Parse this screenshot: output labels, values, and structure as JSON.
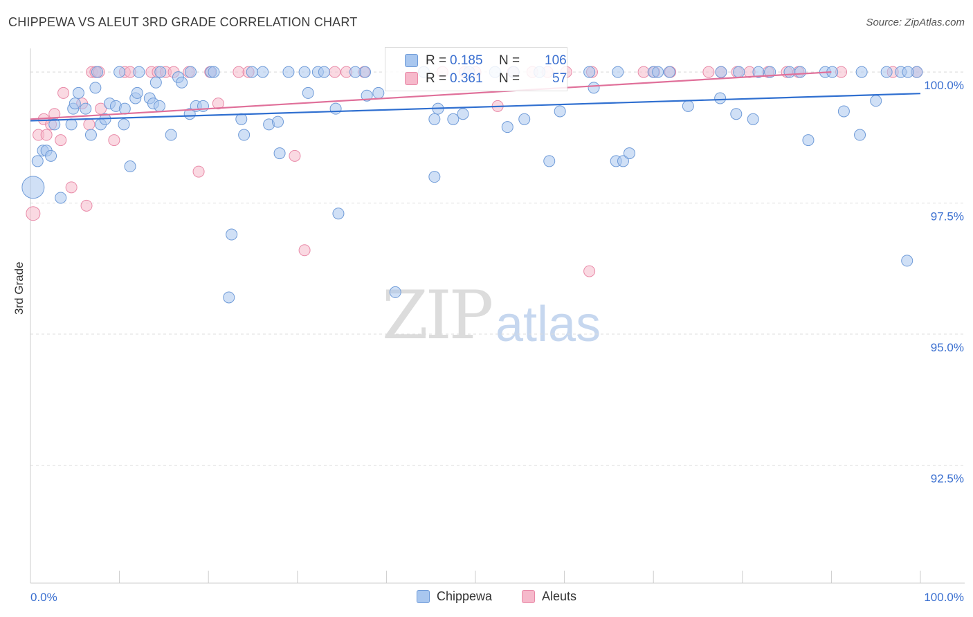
{
  "title": "CHIPPEWA VS ALEUT 3RD GRADE CORRELATION CHART",
  "source": "Source: ZipAtlas.com",
  "watermark": {
    "zip": "ZIP",
    "atlas": "atlas"
  },
  "colors": {
    "chippewa_fill": "#a9c7ef",
    "chippewa_stroke": "#6f9bd8",
    "chippewa_line": "#2f6fd0",
    "aleut_fill": "#f6b9cb",
    "aleut_stroke": "#e98aa8",
    "aleut_line": "#e0709a",
    "axis_text": "#3a6fd0",
    "grid": "#dddddd"
  },
  "legend": {
    "rows": [
      {
        "r_label": "R =",
        "r_value": "0.185",
        "n_label": "N =",
        "n_value": "106"
      },
      {
        "r_label": "R =",
        "r_value": "0.361",
        "n_label": "N =",
        "n_value": "57"
      }
    ]
  },
  "bottom_legend": [
    "Chippewa",
    "Aleuts"
  ],
  "chart_data": {
    "type": "scatter",
    "title": "CHIPPEWA VS ALEUT 3RD GRADE CORRELATION CHART",
    "xlabel": "",
    "ylabel": "3rd Grade",
    "xlim": [
      0,
      100
    ],
    "ylim": [
      90.25,
      100.45
    ],
    "x_tick_labels": [
      "0.0%",
      "100.0%"
    ],
    "y_ticks": [
      100.0,
      97.5,
      95.0,
      92.5
    ],
    "y_tick_labels": [
      "100.0%",
      "97.5%",
      "95.0%",
      "92.5%"
    ],
    "grid": true,
    "series": [
      {
        "name": "Chippewa",
        "trend": {
          "x": [
            0,
            100
          ],
          "y": [
            99.07,
            99.59
          ]
        },
        "points": [
          [
            0.3,
            97.8
          ],
          [
            0.8,
            98.3
          ],
          [
            1.4,
            98.5
          ],
          [
            1.8,
            98.5
          ],
          [
            2.3,
            98.4
          ],
          [
            2.7,
            99.0
          ],
          [
            3.4,
            97.6
          ],
          [
            4.6,
            99.0
          ],
          [
            4.8,
            99.3
          ],
          [
            5.0,
            99.4
          ],
          [
            5.4,
            99.6
          ],
          [
            6.2,
            99.3
          ],
          [
            6.8,
            98.8
          ],
          [
            7.3,
            99.7
          ],
          [
            7.9,
            99.0
          ],
          [
            8.4,
            99.1
          ],
          [
            8.9,
            99.4
          ],
          [
            9.6,
            99.35
          ],
          [
            10.5,
            99.0
          ],
          [
            10.6,
            99.3
          ],
          [
            11.2,
            98.2
          ],
          [
            11.8,
            99.5
          ],
          [
            12.0,
            99.6
          ],
          [
            13.4,
            99.5
          ],
          [
            13.8,
            99.4
          ],
          [
            14.1,
            99.8
          ],
          [
            14.5,
            99.35
          ],
          [
            15.8,
            98.8
          ],
          [
            16.6,
            99.9
          ],
          [
            17.0,
            99.8
          ],
          [
            17.9,
            99.2
          ],
          [
            18.6,
            99.35
          ],
          [
            19.4,
            99.35
          ],
          [
            20.3,
            100.0
          ],
          [
            22.3,
            95.7
          ],
          [
            22.6,
            96.9
          ],
          [
            23.7,
            99.1
          ],
          [
            24.0,
            98.8
          ],
          [
            26.1,
            100.0
          ],
          [
            26.8,
            99.0
          ],
          [
            27.8,
            99.05
          ],
          [
            28.0,
            98.45
          ],
          [
            30.8,
            100.0
          ],
          [
            31.2,
            99.6
          ],
          [
            32.3,
            100.0
          ],
          [
            33.0,
            100.0
          ],
          [
            34.3,
            99.3
          ],
          [
            34.6,
            97.3
          ],
          [
            37.6,
            100.0
          ],
          [
            37.8,
            99.55
          ],
          [
            39.1,
            99.6
          ],
          [
            41.0,
            95.8
          ],
          [
            45.4,
            99.1
          ],
          [
            45.4,
            98.0
          ],
          [
            45.8,
            99.3
          ],
          [
            47.5,
            99.1
          ],
          [
            48.6,
            99.2
          ],
          [
            49.3,
            100.0
          ],
          [
            53.6,
            98.95
          ],
          [
            54.3,
            100.0
          ],
          [
            55.5,
            99.1
          ],
          [
            58.3,
            98.3
          ],
          [
            59.5,
            99.25
          ],
          [
            63.3,
            99.7
          ],
          [
            65.8,
            98.3
          ],
          [
            66.6,
            98.3
          ],
          [
            67.3,
            98.45
          ],
          [
            70.0,
            100.0
          ],
          [
            70.5,
            100.0
          ],
          [
            73.9,
            99.35
          ],
          [
            77.5,
            99.5
          ],
          [
            77.6,
            100.0
          ],
          [
            79.3,
            99.2
          ],
          [
            79.6,
            100.0
          ],
          [
            81.2,
            99.1
          ],
          [
            85.3,
            100.0
          ],
          [
            87.4,
            98.7
          ],
          [
            89.3,
            100.0
          ],
          [
            91.4,
            99.25
          ],
          [
            93.2,
            98.8
          ],
          [
            95.0,
            99.45
          ],
          [
            98.5,
            96.4
          ],
          [
            99.6,
            100.0
          ],
          [
            18.0,
            100.0
          ],
          [
            10.0,
            100.0
          ],
          [
            12.2,
            100.0
          ],
          [
            14.6,
            100.0
          ],
          [
            20.6,
            100.0
          ],
          [
            29.0,
            100.0
          ],
          [
            36.5,
            100.0
          ],
          [
            57.2,
            100.0
          ],
          [
            62.8,
            100.0
          ],
          [
            66.0,
            100.0
          ],
          [
            71.8,
            100.0
          ],
          [
            81.8,
            100.0
          ],
          [
            83.1,
            100.0
          ],
          [
            86.5,
            100.0
          ],
          [
            90.1,
            100.0
          ],
          [
            93.4,
            100.0
          ],
          [
            96.2,
            100.0
          ],
          [
            97.8,
            100.0
          ],
          [
            98.6,
            100.0
          ],
          [
            7.5,
            100.0
          ],
          [
            24.9,
            100.0
          ],
          [
            44.2,
            100.0
          ],
          [
            52.2,
            100.0
          ]
        ]
      },
      {
        "name": "Aleuts",
        "trend": {
          "x": [
            0,
            90
          ],
          "y": [
            99.1,
            100.0
          ]
        },
        "points": [
          [
            0.3,
            97.3
          ],
          [
            0.9,
            98.8
          ],
          [
            1.5,
            99.1
          ],
          [
            1.8,
            98.8
          ],
          [
            2.3,
            99.0
          ],
          [
            2.7,
            99.2
          ],
          [
            3.4,
            98.7
          ],
          [
            3.7,
            99.6
          ],
          [
            4.6,
            97.8
          ],
          [
            5.8,
            99.4
          ],
          [
            6.3,
            97.45
          ],
          [
            6.6,
            99.0
          ],
          [
            6.9,
            100.0
          ],
          [
            7.3,
            100.0
          ],
          [
            7.7,
            100.0
          ],
          [
            7.9,
            99.3
          ],
          [
            9.4,
            98.7
          ],
          [
            10.6,
            100.0
          ],
          [
            11.2,
            100.0
          ],
          [
            13.6,
            100.0
          ],
          [
            14.3,
            100.0
          ],
          [
            15.2,
            100.0
          ],
          [
            16.1,
            100.0
          ],
          [
            17.8,
            100.0
          ],
          [
            18.9,
            98.1
          ],
          [
            20.2,
            100.0
          ],
          [
            21.1,
            99.4
          ],
          [
            23.4,
            100.0
          ],
          [
            24.5,
            100.0
          ],
          [
            29.7,
            98.4
          ],
          [
            30.8,
            96.6
          ],
          [
            34.2,
            100.0
          ],
          [
            35.5,
            100.0
          ],
          [
            37.5,
            100.0
          ],
          [
            46.3,
            100.0
          ],
          [
            48.8,
            100.0
          ],
          [
            50.0,
            100.0
          ],
          [
            52.5,
            99.35
          ],
          [
            54.2,
            100.0
          ],
          [
            56.4,
            100.0
          ],
          [
            58.1,
            100.0
          ],
          [
            60.2,
            100.0
          ],
          [
            62.8,
            96.2
          ],
          [
            63.1,
            100.0
          ],
          [
            68.9,
            100.0
          ],
          [
            70.1,
            100.0
          ],
          [
            71.9,
            100.0
          ],
          [
            76.2,
            100.0
          ],
          [
            77.6,
            100.0
          ],
          [
            79.4,
            100.0
          ],
          [
            80.8,
            100.0
          ],
          [
            82.9,
            100.0
          ],
          [
            85.0,
            100.0
          ],
          [
            86.3,
            100.0
          ],
          [
            91.1,
            100.0
          ],
          [
            96.9,
            100.0
          ],
          [
            99.6,
            100.0
          ]
        ]
      }
    ]
  }
}
